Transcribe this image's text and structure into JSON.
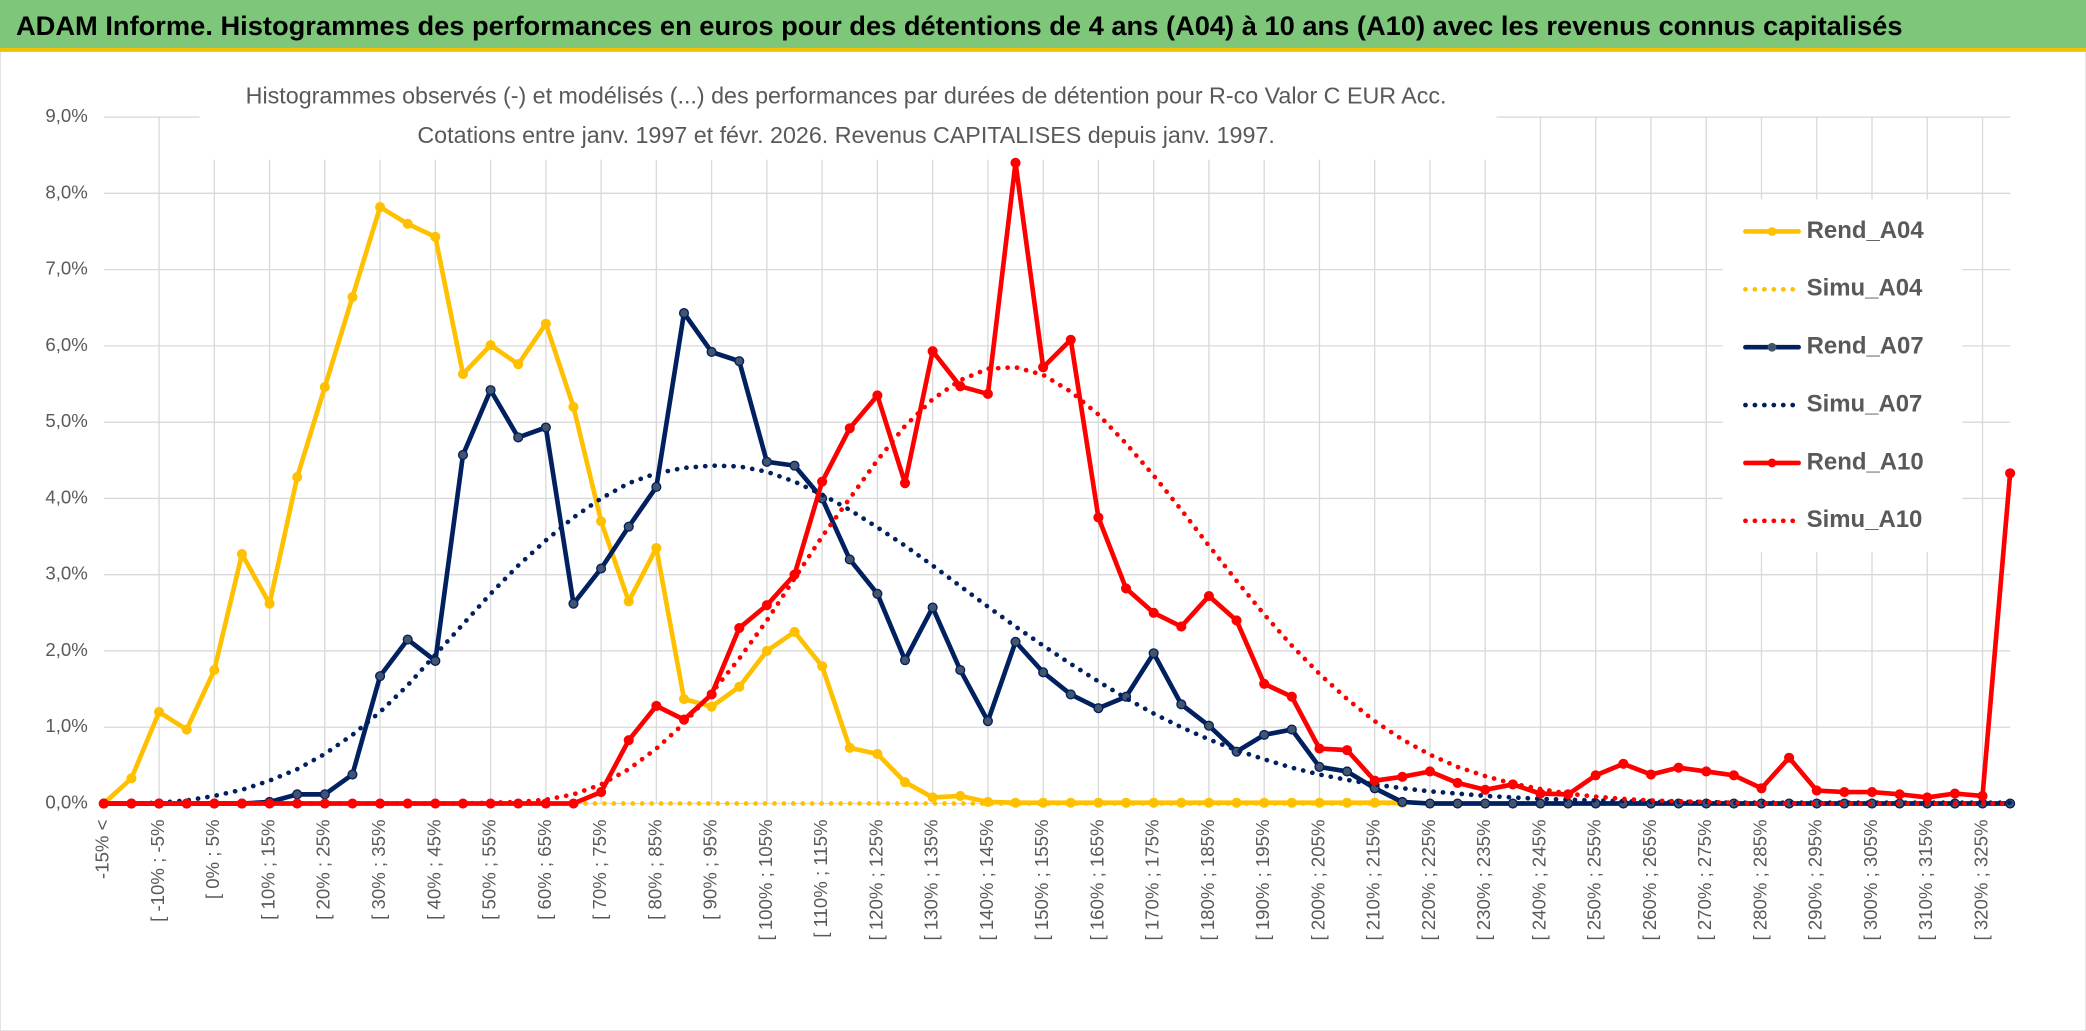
{
  "chart_data": {
    "type": "line",
    "banner": "ADAM Informe. Histogrammes des performances en euros pour des détentions de 4 ans (A04) à 10 ans (A10) avec les revenus connus capitalisés",
    "title": "Histogrammes observés (-) et modélisés (...) des performances par durées de détention pour R-co Valor C EUR Acc.",
    "subtitle": "Cotations entre janv. 1997 et févr. 2026. Revenus CAPITALISES depuis janv. 1997.",
    "categories": [
      "-15% <",
      null,
      "[ -10% ; -5%",
      null,
      "[ 0% ; 5%",
      null,
      "[ 10% ; 15%",
      null,
      "[ 20% ; 25%",
      null,
      "[ 30% ; 35%",
      null,
      "[ 40% ; 45%",
      null,
      "[ 50% ; 55%",
      null,
      "[ 60% ; 65%",
      null,
      "[ 70% ; 75%",
      null,
      "[ 80% ; 85%",
      null,
      "[ 90% ; 95%",
      null,
      "[ 100% ; 105%",
      null,
      "[ 110% ; 115%",
      null,
      "[ 120% ; 125%",
      null,
      "[ 130% ; 135%",
      null,
      "[ 140% ; 145%",
      null,
      "[ 150% ; 155%",
      null,
      "[ 160% ; 165%",
      null,
      "[ 170% ; 175%",
      null,
      "[ 180% ; 185%",
      null,
      "[ 190% ; 195%",
      null,
      "[ 200% ; 205%",
      null,
      "[ 210% ; 215%",
      null,
      "[ 220% ; 225%",
      null,
      "[ 230% ; 235%",
      null,
      "[ 240% ; 245%",
      null,
      "[ 250% ; 255%",
      null,
      "[ 260% ; 265%",
      null,
      "[ 270% ; 275%",
      null,
      "[ 280% ; 285%",
      null,
      "[ 290% ; 295%",
      null,
      "[ 300% ; 305%",
      null,
      "[ 310% ; 315%",
      null,
      "[ 320% ; 325%",
      null
    ],
    "ylim": [
      0,
      9
    ],
    "yticks": [
      {
        "value": 0,
        "label": "0,0%"
      },
      {
        "value": 1,
        "label": "1,0%"
      },
      {
        "value": 2,
        "label": "2,0%"
      },
      {
        "value": 3,
        "label": "3,0%"
      },
      {
        "value": 4,
        "label": "4,0%"
      },
      {
        "value": 5,
        "label": "5,0%"
      },
      {
        "value": 6,
        "label": "6,0%"
      },
      {
        "value": 7,
        "label": "7,0%"
      },
      {
        "value": 8,
        "label": "8,0%"
      },
      {
        "value": 9,
        "label": "9,0%"
      }
    ],
    "grid": true,
    "legend": "right",
    "series": [
      {
        "name": "Rend_A04",
        "color": "#FFC000",
        "style": "solid",
        "values": [
          0,
          0.33,
          1.2,
          0.97,
          1.75,
          3.27,
          2.62,
          4.28,
          5.46,
          6.64,
          7.82,
          7.6,
          7.43,
          5.63,
          6.01,
          5.76,
          6.29,
          5.2,
          3.7,
          2.65,
          3.35,
          1.37,
          1.27,
          1.53,
          2.0,
          2.25,
          1.8,
          0.73,
          0.65,
          0.28,
          0.08,
          0.1,
          0.02,
          0.01,
          0.01,
          0.01,
          0.01,
          0.01,
          0.01,
          0.01,
          0.01,
          0.01,
          0.01,
          0.01,
          0.01,
          0.01,
          0.01,
          0.01,
          null,
          null,
          null,
          null,
          null,
          null,
          null,
          null,
          null,
          null,
          null,
          null,
          null,
          null,
          null,
          null,
          null,
          null,
          null,
          null,
          null,
          null
        ]
      },
      {
        "name": "Simu_A04",
        "color": "#FFC000",
        "style": "dotted",
        "values": [
          0,
          0,
          0,
          0,
          0,
          0,
          0,
          0,
          0,
          0,
          0,
          0,
          0,
          0,
          0,
          0,
          0,
          0,
          0,
          0,
          0,
          0,
          0,
          0,
          0,
          0,
          0,
          0,
          0,
          0,
          0,
          0,
          0,
          0,
          0,
          0,
          0,
          0,
          0,
          0,
          0,
          0,
          0,
          0,
          0,
          0,
          0,
          0,
          null,
          null,
          null,
          null,
          null,
          null,
          null,
          null,
          null,
          null,
          null,
          null,
          null,
          null,
          null,
          null,
          null,
          null,
          null,
          null,
          null,
          null
        ]
      },
      {
        "name": "Rend_A07",
        "color": "#002060",
        "style": "solid",
        "values": [
          0,
          0,
          0,
          0,
          0,
          0,
          0.02,
          0.12,
          0.12,
          0.38,
          1.67,
          2.15,
          1.87,
          4.57,
          5.42,
          4.8,
          4.93,
          2.62,
          3.08,
          3.63,
          4.15,
          6.43,
          5.92,
          5.8,
          4.48,
          4.43,
          4.0,
          3.2,
          2.75,
          1.88,
          2.57,
          1.75,
          1.08,
          2.12,
          1.72,
          1.43,
          1.25,
          1.4,
          1.97,
          1.3,
          1.02,
          0.68,
          0.9,
          0.97,
          0.48,
          0.42,
          0.2,
          0.02,
          0,
          0,
          0,
          0,
          0,
          0,
          0,
          0,
          0,
          0,
          0,
          0,
          0,
          0,
          0,
          0,
          0,
          0,
          0,
          0,
          0,
          0
        ]
      },
      {
        "name": "Simu_A07",
        "color": "#002060",
        "style": "dotted",
        "values": [
          0,
          0,
          0.01,
          0.04,
          0.1,
          0.18,
          0.3,
          0.45,
          0.65,
          0.9,
          1.2,
          1.55,
          1.95,
          2.35,
          2.75,
          3.12,
          3.45,
          3.75,
          4.0,
          4.2,
          4.33,
          4.4,
          4.43,
          4.42,
          4.35,
          4.22,
          4.05,
          3.85,
          3.62,
          3.38,
          3.12,
          2.85,
          2.58,
          2.32,
          2.07,
          1.83,
          1.6,
          1.38,
          1.18,
          1.0,
          0.84,
          0.7,
          0.58,
          0.47,
          0.38,
          0.31,
          0.25,
          0.2,
          0.16,
          0.13,
          0.1,
          0.08,
          0.06,
          0.05,
          0.04,
          0.03,
          0.02,
          0.02,
          0.02,
          0.01,
          0.01,
          0.01,
          0.01,
          0.01,
          0.01,
          0.01,
          0.01,
          0.01,
          0.01,
          0.01
        ]
      },
      {
        "name": "Rend_A10",
        "color": "#FF0000",
        "style": "solid",
        "values": [
          0,
          0,
          0,
          0,
          0,
          0,
          0,
          0,
          0,
          0,
          0,
          0,
          0,
          0,
          0,
          0,
          0,
          0,
          0.15,
          0.83,
          1.28,
          1.1,
          1.43,
          2.3,
          2.6,
          3.0,
          4.22,
          4.92,
          5.35,
          4.2,
          5.93,
          5.47,
          5.37,
          8.4,
          5.72,
          6.08,
          3.75,
          2.82,
          2.5,
          2.32,
          2.72,
          2.4,
          1.57,
          1.4,
          0.72,
          0.7,
          0.3,
          0.35,
          0.42,
          0.27,
          0.18,
          0.25,
          0.13,
          0.12,
          0.37,
          0.52,
          0.38,
          0.47,
          0.42,
          0.37,
          0.2,
          0.6,
          0.17,
          0.15,
          0.15,
          0.12,
          0.08,
          0.13,
          0.1,
          4.33
        ]
      },
      {
        "name": "Simu_A10",
        "color": "#FF0000",
        "style": "dotted",
        "values": [
          0,
          0,
          0,
          0,
          0,
          0,
          0,
          0,
          0,
          0,
          0,
          0,
          0,
          0,
          0.01,
          0.02,
          0.05,
          0.12,
          0.25,
          0.45,
          0.72,
          1.05,
          1.45,
          1.9,
          2.4,
          2.95,
          3.5,
          4.0,
          4.5,
          4.95,
          5.3,
          5.55,
          5.7,
          5.72,
          5.62,
          5.4,
          5.1,
          4.72,
          4.3,
          3.85,
          3.38,
          2.92,
          2.48,
          2.07,
          1.7,
          1.37,
          1.08,
          0.84,
          0.64,
          0.48,
          0.36,
          0.26,
          0.19,
          0.13,
          0.09,
          0.06,
          0.04,
          0.03,
          0.02,
          0.01,
          0,
          0,
          0,
          0,
          0,
          0,
          0,
          0,
          0,
          0
        ]
      }
    ]
  }
}
